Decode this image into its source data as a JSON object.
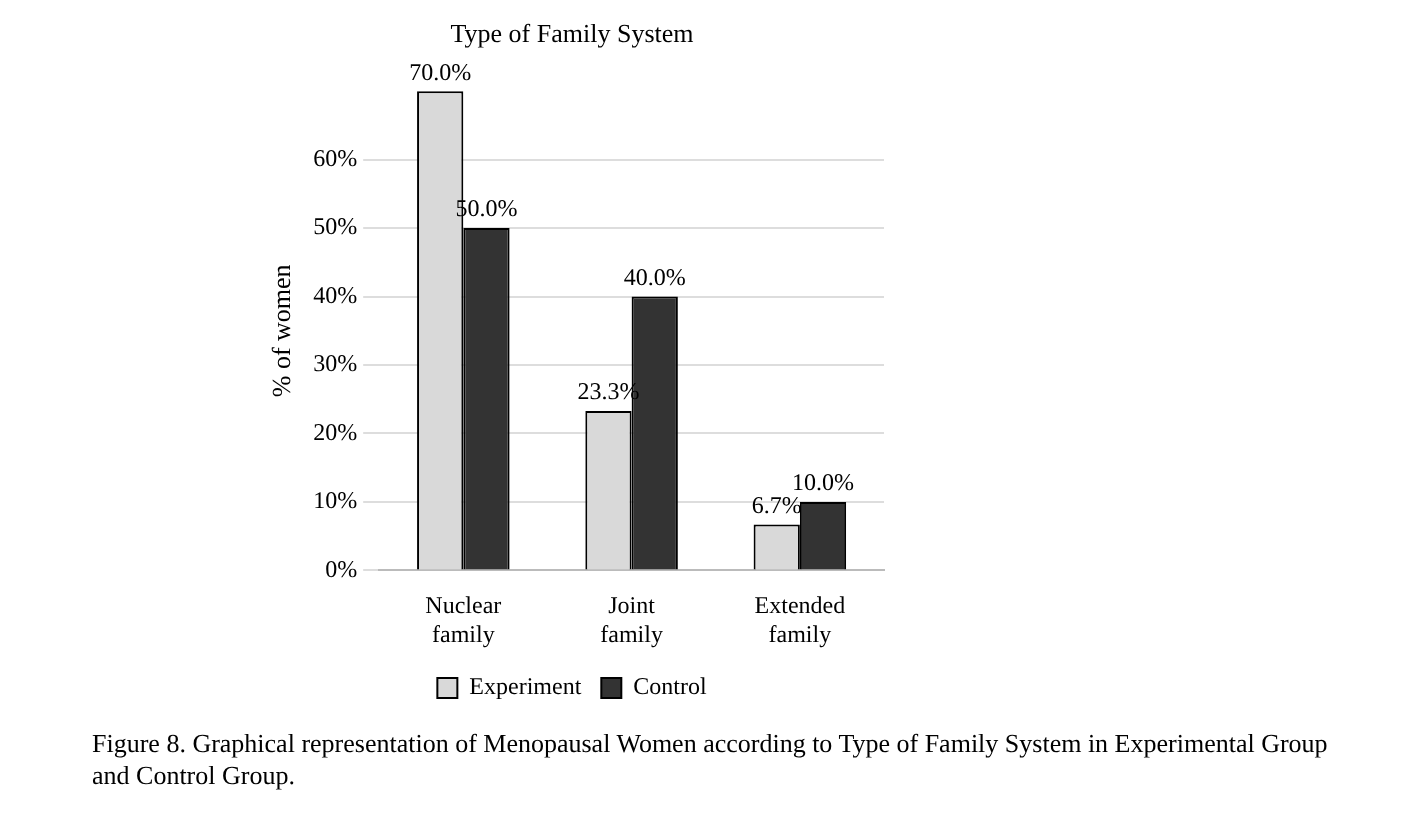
{
  "chart_data": {
    "type": "bar",
    "title": "Type of Family System",
    "ylabel": "% of women",
    "categories": [
      "Nuclear family",
      "Joint family",
      "Extended family"
    ],
    "series": [
      {
        "name": "Experiment",
        "color": "#d9d9d9",
        "values": [
          70.0,
          23.3,
          6.7
        ],
        "value_labels": [
          "70.0%",
          "23.3%",
          "6.7%"
        ]
      },
      {
        "name": "Control",
        "color": "#333333",
        "values": [
          50.0,
          40.0,
          10.0
        ],
        "value_labels": [
          "50.0%",
          "40.0%",
          "10.0%"
        ]
      }
    ],
    "ylim": [
      0,
      70
    ],
    "yticks": [
      {
        "value": 0,
        "label": "0%"
      },
      {
        "value": 10,
        "label": "10%"
      },
      {
        "value": 20,
        "label": "20%"
      },
      {
        "value": 30,
        "label": "30%"
      },
      {
        "value": 40,
        "label": "40%"
      },
      {
        "value": 50,
        "label": "50%"
      },
      {
        "value": 60,
        "label": "60%"
      }
    ],
    "grid": "y",
    "legend": "bottom",
    "annotations": [
      "Figure 8. Graphical representation of Menopausal Women according to Type of Family System in Experimental Group and Control Group."
    ]
  }
}
